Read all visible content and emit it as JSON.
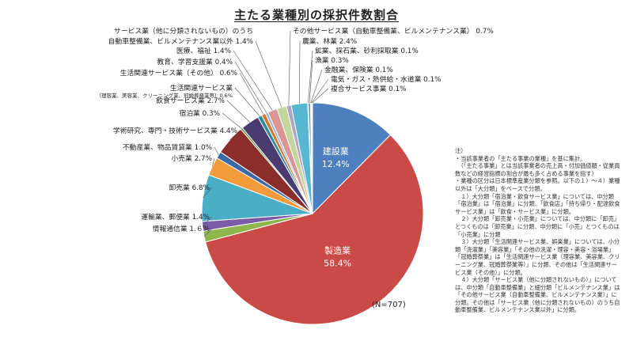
{
  "title": "主たる業種別の採択件数割合",
  "n_label": "(N=707)",
  "chart_data": {
    "type": "pie",
    "title": "主たる業種別の採択件数割合",
    "n": "(N=707)",
    "slices": [
      {
        "name": "建設業",
        "value": 12.4,
        "color": "#4e7fbf",
        "label": "建設業",
        "value_label": "12.4%"
      },
      {
        "name": "製造業",
        "value": 58.4,
        "color": "#c94a47",
        "label": "製造業",
        "value_label": "58.4%"
      },
      {
        "name": "情報通信業",
        "value": 1.6,
        "color": "#8db64c",
        "label": "情報通信業 1.６%"
      },
      {
        "name": "運輸業、郵便業",
        "value": 1.4,
        "color": "#7a5ca6",
        "label": "運輸業、郵便業 1.4%"
      },
      {
        "name": "卸売業",
        "value": 6.8,
        "color": "#4aaec6",
        "label": "卸売業 6.8%"
      },
      {
        "name": "小売業",
        "value": 2.7,
        "color": "#f39a3b",
        "label": "小売業 2.7%"
      },
      {
        "name": "不動産業、物品賃貸業",
        "value": 1.0,
        "color": "#3a6aa6",
        "label": "不動産業、物品賃貸業 1.0%"
      },
      {
        "name": "学術研究、専門・技術サービス業",
        "value": 4.4,
        "color": "#8a2d2b",
        "label": "学術研究、専門・技術サービス業 4.4%"
      },
      {
        "name": "宿泊業",
        "value": 0.3,
        "color": "#6b8f3a",
        "label": "宿泊業 0.3%"
      },
      {
        "name": "飲食サービス業",
        "value": 2.7,
        "color": "#4b3b73",
        "label": "飲食サービス業 2.7%"
      },
      {
        "name": "生活関連サービス業（理容業、美容業、クリーニング業、冠婚葬祭業等）",
        "value": 0.6,
        "color": "#2d8aa0",
        "label": "生活関連サービス業",
        "sublabel": "（理容業、美容業、クリーニング業、冠婚葬祭業等）0.6%"
      },
      {
        "name": "生活関連サービス業（その他）",
        "value": 0.6,
        "color": "#d37a2a",
        "label": "生活関連サービス業（その他） 0.6%"
      },
      {
        "name": "教育、学習支援業",
        "value": 0.4,
        "color": "#9bb3d6",
        "label": "教育、学習支援業 0.4%"
      },
      {
        "name": "医療、福祉",
        "value": 1.4,
        "color": "#d99694",
        "label": "医療、福祉 1.4%"
      },
      {
        "name": "自動車整備業、ビルメンテナンス業以外",
        "value": 1.4,
        "color": "#c3d69b",
        "label": "自動車整備業、ビルメンテナンス業以外 1.4%"
      },
      {
        "name": "サービス業（他に分類されないもの）のうち",
        "value": 0,
        "color": "#b2a1c7",
        "label": "サービス業（他に分類されないもの）のうち"
      },
      {
        "name": "その他サービス業（自動車整備業、ビルメンテナンス業）",
        "value": 0.7,
        "color": "#b2a1c7",
        "label": "その他サービス業（自動車整備業、ビルメンテナンス業） 0.7%"
      },
      {
        "name": "農業、林業",
        "value": 2.4,
        "color": "#57b7d0",
        "label": "農業、林業 2.4%"
      },
      {
        "name": "鉱業、採石業、砂利採取業",
        "value": 0.1,
        "color": "#f7b26b",
        "label": "鉱業、採石業、砂利採取業 0.1%"
      },
      {
        "name": "漁業",
        "value": 0.3,
        "color": "#5d86c5",
        "label": "漁業 0.3%"
      },
      {
        "name": "金融業、保険業",
        "value": 0.1,
        "color": "#d04f4f",
        "label": "金融業、保険業 0.1%"
      },
      {
        "name": "電気・ガス・熱供給・水道業",
        "value": 0.1,
        "color": "#9bbb59",
        "label": "電気・ガス・熱供給・水道業 0.1%"
      },
      {
        "name": "複合サービス事業",
        "value": 0.1,
        "color": "#8064a2",
        "label": "複合サービス事業 0.1%"
      }
    ]
  },
  "notes": [
    "注）",
    "・当該事業者の「主たる事業の業種」を基に集計。",
    "　（「主たる事業」とは当該事業者の売上高・付加価値額・従業員数などの経営指標の割合が最も多く占める事業を指す）",
    "・業種の区分は日本標準産業分類を参照。以下の１）～４）業種以外は「大分類」をベースで分類。",
    "　１）大分類「宿泊業・飲食サービス業」については、中分類「宿泊業」は「宿泊業」に分類、「飲食店」「持ち帰り・配達飲食サービス業」は「飲食・サービス業」に分類。",
    "　２）大分類「卸売業・小売業」については、中分類に「卸売」とつくものは「卸売業」に分類、中分類に「小売」とつくものは「小売業」に分類",
    "　３）大分類「生活関連サービス業、娯楽業」については、小分類「洗濯業」「美容業」「その他の洗濯・理容・美容・浴場業」「冠婚葬祭業」は「生活関連サービス業（理容業、美容業、クリーニング業、冠婚葬祭業等）」に分類、その他は「生活関連サービス業（その他）」に分類。",
    "　４）大分類「サービス業（他に分類されないもの）」については、中分類「自動車整備業」と細分類「ビルメンテナンス業」は「その他サービス業（自動車整備業、ビルメンテナンス業）」に分類。その他は「サービス業（他に分類されないもの）のうち自動車整備業、ビルメンテナンス業以外」に分類。"
  ]
}
